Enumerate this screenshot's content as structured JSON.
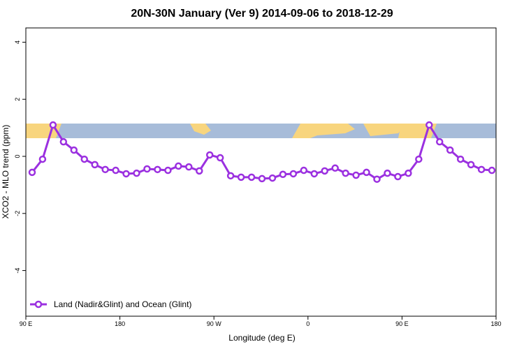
{
  "chart_data": {
    "type": "line",
    "title": "20N-30N January (Ver 9)   2014-09-06 to 2018-12-29",
    "x_label": "Longitude (deg E)",
    "y_label": "XCO2 - MLO trend (ppm)",
    "xlim": [
      90,
      540
    ],
    "ylim": [
      -5.6,
      4.5
    ],
    "xticks": [
      {
        "value": 90,
        "label": "90 E"
      },
      {
        "value": 180,
        "label": "180"
      },
      {
        "value": 270,
        "label": "90 W"
      },
      {
        "value": 360,
        "label": "0"
      },
      {
        "value": 450,
        "label": "90 E"
      },
      {
        "value": 540,
        "label": "180"
      }
    ],
    "yticks": [
      -4,
      -2,
      0,
      2,
      4
    ],
    "legend": "bottom-left",
    "x": [
      96,
      106,
      116,
      126,
      136,
      146,
      156,
      166,
      176,
      186,
      196,
      206,
      216,
      226,
      236,
      246,
      256,
      266,
      276,
      286,
      296,
      306,
      316,
      326,
      336,
      346,
      356,
      366,
      376,
      386,
      396,
      406,
      416,
      426,
      436,
      446,
      456,
      466,
      476,
      486,
      496,
      506,
      516,
      526,
      536
    ],
    "series": [
      {
        "name": "Land (Nadir&Glint) and Ocean (Glint)",
        "color": "#9b30e0",
        "values": [
          -0.56,
          -0.1,
          1.1,
          0.51,
          0.22,
          -0.1,
          -0.29,
          -0.46,
          -0.49,
          -0.61,
          -0.59,
          -0.44,
          -0.46,
          -0.49,
          -0.34,
          -0.37,
          -0.51,
          0.05,
          -0.05,
          -0.68,
          -0.73,
          -0.73,
          -0.78,
          -0.76,
          -0.63,
          -0.61,
          -0.49,
          -0.61,
          -0.51,
          -0.41,
          -0.59,
          -0.66,
          -0.56,
          -0.8,
          -0.59,
          -0.71,
          -0.59,
          -0.1,
          1.1,
          0.51,
          0.22,
          -0.1,
          -0.29,
          -0.46,
          -0.49
        ]
      }
    ]
  }
}
